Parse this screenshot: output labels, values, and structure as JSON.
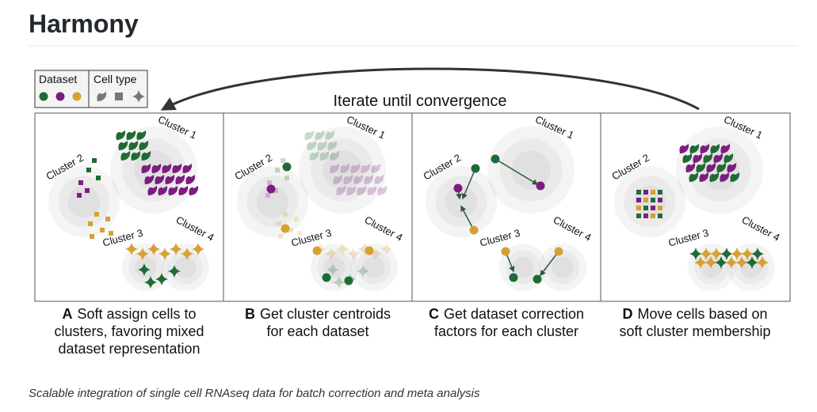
{
  "header": {
    "title": "Harmony"
  },
  "figure": {
    "legend": {
      "dataset": "Dataset",
      "cell_type": "Cell type"
    },
    "loop_label": "Iterate until convergence",
    "panels": [
      {
        "clusters": [
          "Cluster 1",
          "Cluster 2",
          "Cluster 3",
          "Cluster 4"
        ],
        "letter": "A",
        "caption": [
          "Soft assign cells to",
          "clusters, favoring mixed",
          "dataset representation"
        ]
      },
      {
        "clusters": [
          "Cluster 1",
          "Cluster 2",
          "Cluster 3",
          "Cluster 4"
        ],
        "letter": "B",
        "caption": [
          "Get cluster centroids",
          "for each dataset"
        ]
      },
      {
        "clusters": [
          "Cluster 1",
          "Cluster 2",
          "Cluster 3",
          "Cluster 4"
        ],
        "letter": "C",
        "caption": [
          "Get dataset correction",
          "factors for each cluster"
        ]
      },
      {
        "clusters": [
          "Cluster 1",
          "Cluster 2",
          "Cluster 3",
          "Cluster 4"
        ],
        "letter": "D",
        "caption": [
          "Move cells based on",
          "soft cluster membership"
        ]
      }
    ]
  },
  "caption": "Scalable integration of single cell RNAseq data for batch correction and meta analysis"
}
